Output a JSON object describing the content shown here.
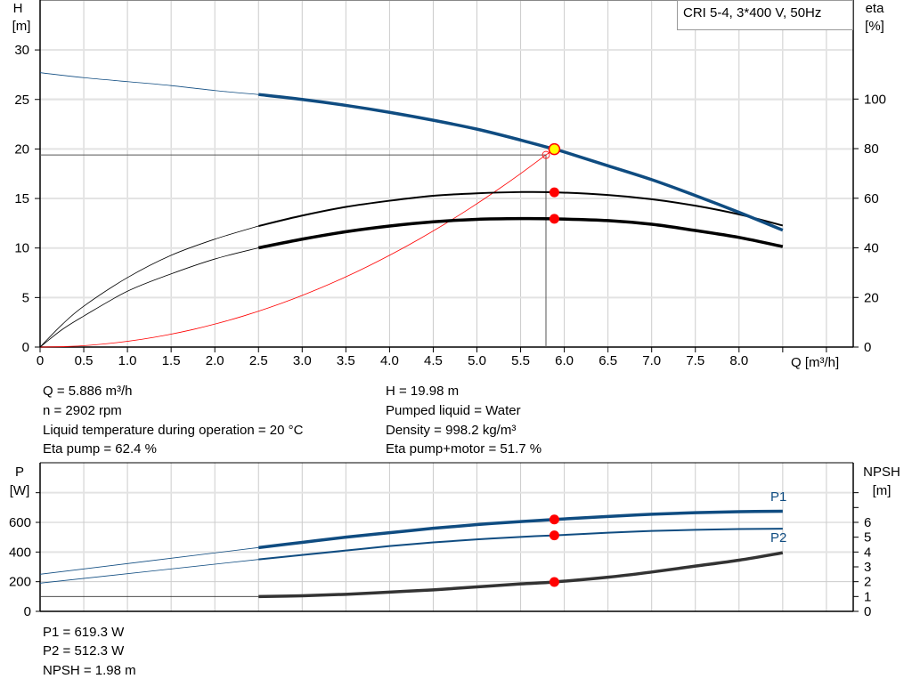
{
  "colors": {
    "head": "#0f4c81",
    "power": "#0f4c81",
    "eta": "#000000",
    "npsh": "#000000",
    "system": "#ff0000",
    "duty_point": "#ffff00",
    "marker": "#ff0000",
    "grid": "#cccccc"
  },
  "chart_data": [
    {
      "type": "line",
      "title": "CRI 5-4, 3*400 V, 50Hz",
      "xlabel": "Q [m³/h]",
      "ylabel": "H\n[m]",
      "ylabel_lines": [
        "H",
        "[m]"
      ],
      "y2label_lines": [
        "eta",
        "[%]"
      ],
      "xlim": [
        0,
        9.3
      ],
      "ylim": [
        0,
        35
      ],
      "y2lim": [
        0,
        125
      ],
      "xticks": [
        "0",
        "0.5",
        "1.0",
        "1.5",
        "2.0",
        "2.5",
        "3.0",
        "3.5",
        "4.0",
        "4.5",
        "5.0",
        "5.5",
        "6.0",
        "6.5",
        "7.0",
        "7.5",
        "8.0"
      ],
      "yticks": [
        "0",
        "5",
        "10",
        "15",
        "20",
        "25",
        "30"
      ],
      "y2ticks": [
        "0",
        "20",
        "40",
        "60",
        "80",
        "100"
      ],
      "grid": true,
      "operating_range": [
        2.5,
        8.5
      ],
      "series": [
        {
          "key": "H",
          "axis": "left",
          "x": [
            0,
            0.5,
            1.0,
            1.5,
            2.0,
            2.5,
            3.0,
            3.5,
            4.0,
            4.5,
            5.0,
            5.5,
            5.886,
            6.0,
            6.5,
            7.0,
            7.5,
            8.0,
            8.5
          ],
          "y": [
            27.7,
            27.2,
            26.8,
            26.4,
            25.9,
            25.5,
            25.0,
            24.4,
            23.7,
            22.9,
            22.0,
            20.9,
            19.98,
            19.7,
            18.3,
            16.9,
            15.3,
            13.6,
            11.8
          ]
        },
        {
          "key": "eta_pump",
          "axis": "right",
          "x": [
            0,
            0.25,
            0.5,
            1.0,
            1.5,
            2.0,
            2.5,
            3.0,
            3.5,
            4.0,
            4.5,
            5.0,
            5.5,
            5.886,
            6.5,
            7.0,
            7.5,
            8.0,
            8.5
          ],
          "y": [
            0,
            9,
            16.5,
            28,
            37,
            43.5,
            48.8,
            53,
            56.5,
            59,
            61,
            62,
            62.5,
            62.4,
            61.3,
            59.6,
            57,
            53.5,
            49
          ]
        },
        {
          "key": "eta_pump_motor",
          "axis": "right",
          "x": [
            0,
            0.25,
            0.5,
            1.0,
            1.5,
            2.0,
            2.5,
            3.0,
            3.5,
            4.0,
            4.5,
            5.0,
            5.5,
            5.886,
            6.5,
            7.0,
            7.5,
            8.0,
            8.5
          ],
          "y": [
            0,
            7,
            12.5,
            22.5,
            29.5,
            35.5,
            40,
            43.5,
            46.5,
            48.8,
            50.5,
            51.5,
            51.8,
            51.7,
            51,
            49.5,
            47,
            44.2,
            40.5
          ]
        }
      ],
      "system_curve": {
        "coefficient": 0.579,
        "q_max": 5.79
      },
      "duty_point": {
        "Q": 5.886,
        "H": 19.98,
        "eta_pump": 62.4,
        "eta_pump_motor": 51.7
      },
      "requested_point": {
        "Q": 5.79,
        "H": 19.4
      }
    },
    {
      "type": "line",
      "ylabel_lines": [
        "P",
        "[W]"
      ],
      "y2label_lines": [
        "NPSH",
        "[m]"
      ],
      "xlim": [
        0,
        9.3
      ],
      "ylim": [
        0,
        1000
      ],
      "y2lim": [
        0,
        10
      ],
      "yticks": [
        "0",
        "200",
        "400",
        "600",
        ""
      ],
      "y2ticks": [
        "0",
        "1",
        "2",
        "3",
        "4",
        "5",
        "6",
        ""
      ],
      "grid": true,
      "operating_range": [
        2.5,
        8.5
      ],
      "series": [
        {
          "key": "P1",
          "name": "P1",
          "axis": "left",
          "x": [
            0,
            2.5,
            3.0,
            3.5,
            4.0,
            4.5,
            5.0,
            5.5,
            5.886,
            6.5,
            7.0,
            7.5,
            8.0,
            8.5
          ],
          "y": [
            250,
            430,
            465,
            500,
            530,
            560,
            585,
            605,
            619.3,
            640,
            655,
            665,
            672,
            675
          ]
        },
        {
          "key": "P2",
          "name": "P2",
          "axis": "left",
          "x": [
            0,
            2.5,
            3.0,
            3.5,
            4.0,
            4.5,
            5.0,
            5.5,
            5.886,
            6.5,
            7.0,
            7.5,
            8.0,
            8.5
          ],
          "y": [
            190,
            350,
            380,
            410,
            440,
            465,
            485,
            502,
            512.3,
            530,
            542,
            550,
            555,
            557
          ]
        },
        {
          "key": "NPSH",
          "axis": "right",
          "x": [
            0,
            2.5,
            3.0,
            3.5,
            4.0,
            4.5,
            5.0,
            5.5,
            5.886,
            6.5,
            7.0,
            7.5,
            8.0,
            8.5
          ],
          "y": [
            1.0,
            1.0,
            1.05,
            1.15,
            1.3,
            1.45,
            1.65,
            1.85,
            1.98,
            2.3,
            2.65,
            3.05,
            3.45,
            3.95
          ]
        }
      ],
      "duty_point": {
        "Q": 5.886,
        "P1": 619.3,
        "P2": 512.3,
        "NPSH": 1.98
      }
    }
  ],
  "info_top": {
    "q": "Q = 5.886 m³/h",
    "n": "n = 2902 rpm",
    "temp": "Liquid temperature during operation = 20 °C",
    "eta_pump": "Eta pump = 62.4 %",
    "h": "H = 19.98 m",
    "liquid": "Pumped liquid = Water",
    "density": "Density = 998.2 kg/m³",
    "eta_total": "Eta pump+motor = 51.7 %"
  },
  "info_bottom": {
    "p1": "P1 = 619.3 W",
    "p2": "P2 = 512.3 W",
    "npsh": "NPSH = 1.98 m"
  }
}
